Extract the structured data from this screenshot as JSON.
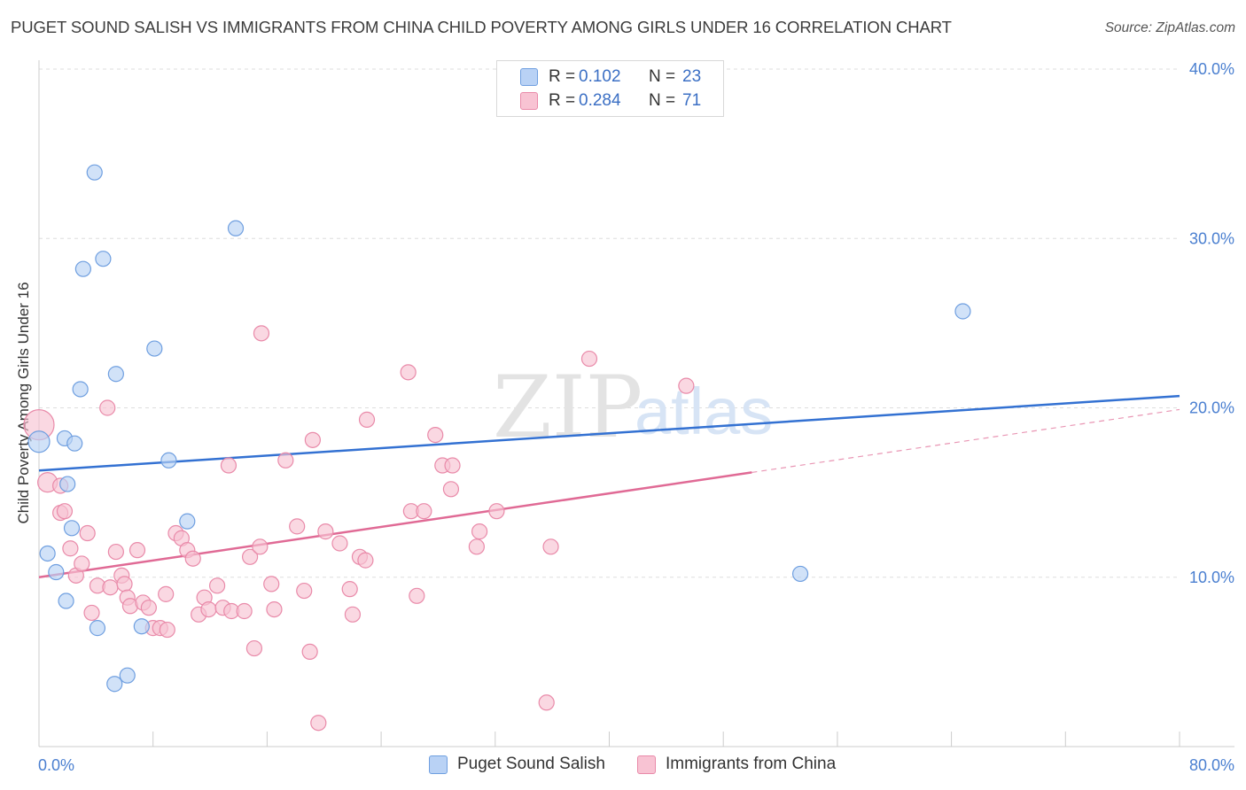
{
  "title": "PUGET SOUND SALISH VS IMMIGRANTS FROM CHINA CHILD POVERTY AMONG GIRLS UNDER 16 CORRELATION CHART",
  "source": "Source: ZipAtlas.com",
  "watermark": {
    "zip": "ZIP",
    "atlas": "atlas"
  },
  "legend": {
    "rows": [
      {
        "r_label": "R =",
        "r_value": "0.102",
        "n_label": "N =",
        "n_value": "23"
      },
      {
        "r_label": "R =",
        "r_value": "0.284",
        "n_label": "N =",
        "n_value": "71"
      }
    ]
  },
  "colors": {
    "blue_fill": "#b9d2f5",
    "blue_stroke": "#6f9fe0",
    "blue_line": "#3371d2",
    "pink_fill": "#f8c3d3",
    "pink_stroke": "#e98aa9",
    "pink_line": "#e06a95",
    "grid": "#dddddd",
    "tick_text": "#4a7fd0"
  },
  "chart_data": {
    "type": "scatter",
    "title": "PUGET SOUND SALISH VS IMMIGRANTS FROM CHINA CHILD POVERTY AMONG GIRLS UNDER 16 CORRELATION CHART",
    "xlabel": "",
    "ylabel": "Child Poverty Among Girls Under 16",
    "xlim": [
      0,
      80
    ],
    "ylim": [
      0,
      40
    ],
    "x_tick_labels": [
      {
        "value": 0,
        "label": "0.0%"
      },
      {
        "value": 80,
        "label": "80.0%"
      }
    ],
    "y_tick_labels": [
      {
        "value": 10,
        "label": "10.0%"
      },
      {
        "value": 20,
        "label": "20.0%"
      },
      {
        "value": 30,
        "label": "30.0%"
      },
      {
        "value": 40,
        "label": "40.0%"
      }
    ],
    "grid": true,
    "legend_position": "top-center",
    "series": [
      {
        "name": "Puget Sound Salish",
        "color": "blue",
        "r": 0.102,
        "n": 23,
        "trend": {
          "x0": 0,
          "y0": 16.3,
          "x1": 80,
          "y1": 20.7,
          "solid_until": 80
        },
        "points": [
          {
            "x": 0.0,
            "y": 18.0,
            "s": 12
          },
          {
            "x": 1.9,
            "y": 8.6
          },
          {
            "x": 2.3,
            "y": 12.9
          },
          {
            "x": 0.6,
            "y": 11.4
          },
          {
            "x": 1.2,
            "y": 10.3
          },
          {
            "x": 2.0,
            "y": 15.5
          },
          {
            "x": 1.8,
            "y": 18.2
          },
          {
            "x": 2.5,
            "y": 17.9
          },
          {
            "x": 2.9,
            "y": 21.1
          },
          {
            "x": 3.1,
            "y": 28.2
          },
          {
            "x": 3.9,
            "y": 33.9
          },
          {
            "x": 4.5,
            "y": 28.8
          },
          {
            "x": 5.4,
            "y": 22.0
          },
          {
            "x": 4.1,
            "y": 7.0
          },
          {
            "x": 5.3,
            "y": 3.7
          },
          {
            "x": 6.2,
            "y": 4.2
          },
          {
            "x": 7.2,
            "y": 7.1
          },
          {
            "x": 8.1,
            "y": 23.5
          },
          {
            "x": 9.1,
            "y": 16.9
          },
          {
            "x": 10.4,
            "y": 13.3
          },
          {
            "x": 13.8,
            "y": 30.6
          },
          {
            "x": 64.8,
            "y": 25.7
          },
          {
            "x": 53.4,
            "y": 10.2
          }
        ]
      },
      {
        "name": "Immigrants from China",
        "color": "pink",
        "r": 0.284,
        "n": 71,
        "trend": {
          "x0": 0,
          "y0": 10.0,
          "x1": 80,
          "y1": 19.9,
          "solid_until": 50
        },
        "points": [
          {
            "x": 0.0,
            "y": 19.0,
            "s": 17
          },
          {
            "x": 0.6,
            "y": 15.6,
            "s": 11
          },
          {
            "x": 1.5,
            "y": 13.8
          },
          {
            "x": 1.5,
            "y": 15.4
          },
          {
            "x": 1.8,
            "y": 13.9
          },
          {
            "x": 2.2,
            "y": 11.7
          },
          {
            "x": 2.6,
            "y": 10.1
          },
          {
            "x": 3.0,
            "y": 10.8
          },
          {
            "x": 3.4,
            "y": 12.6
          },
          {
            "x": 3.7,
            "y": 7.9
          },
          {
            "x": 4.1,
            "y": 9.5
          },
          {
            "x": 4.8,
            "y": 20.0
          },
          {
            "x": 5.0,
            "y": 9.4
          },
          {
            "x": 5.4,
            "y": 11.5
          },
          {
            "x": 5.8,
            "y": 10.1
          },
          {
            "x": 6.0,
            "y": 9.6
          },
          {
            "x": 6.2,
            "y": 8.8
          },
          {
            "x": 6.4,
            "y": 8.3
          },
          {
            "x": 6.9,
            "y": 11.6
          },
          {
            "x": 7.3,
            "y": 8.5
          },
          {
            "x": 7.7,
            "y": 8.2
          },
          {
            "x": 8.0,
            "y": 7.0
          },
          {
            "x": 8.5,
            "y": 7.0
          },
          {
            "x": 8.9,
            "y": 9.0
          },
          {
            "x": 9.0,
            "y": 6.9
          },
          {
            "x": 9.6,
            "y": 12.6
          },
          {
            "x": 10.0,
            "y": 12.3
          },
          {
            "x": 10.4,
            "y": 11.6
          },
          {
            "x": 10.8,
            "y": 11.1
          },
          {
            "x": 11.2,
            "y": 7.8
          },
          {
            "x": 11.6,
            "y": 8.8
          },
          {
            "x": 11.9,
            "y": 8.1
          },
          {
            "x": 12.5,
            "y": 9.5
          },
          {
            "x": 12.9,
            "y": 8.2
          },
          {
            "x": 13.3,
            "y": 16.6
          },
          {
            "x": 13.5,
            "y": 8.0
          },
          {
            "x": 14.4,
            "y": 8.0
          },
          {
            "x": 14.8,
            "y": 11.2
          },
          {
            "x": 15.1,
            "y": 5.8
          },
          {
            "x": 15.5,
            "y": 11.8
          },
          {
            "x": 15.6,
            "y": 24.4
          },
          {
            "x": 16.3,
            "y": 9.6
          },
          {
            "x": 16.5,
            "y": 8.1
          },
          {
            "x": 17.3,
            "y": 16.9
          },
          {
            "x": 18.1,
            "y": 13.0
          },
          {
            "x": 18.6,
            "y": 9.2
          },
          {
            "x": 19.0,
            "y": 5.6
          },
          {
            "x": 19.2,
            "y": 18.1
          },
          {
            "x": 19.6,
            "y": 1.4
          },
          {
            "x": 20.1,
            "y": 12.7
          },
          {
            "x": 21.1,
            "y": 12.0
          },
          {
            "x": 21.8,
            "y": 9.3
          },
          {
            "x": 22.0,
            "y": 7.8
          },
          {
            "x": 22.5,
            "y": 11.2
          },
          {
            "x": 22.9,
            "y": 11.0
          },
          {
            "x": 23.0,
            "y": 19.3
          },
          {
            "x": 25.9,
            "y": 22.1
          },
          {
            "x": 26.1,
            "y": 13.9
          },
          {
            "x": 26.5,
            "y": 8.9
          },
          {
            "x": 27.0,
            "y": 13.9
          },
          {
            "x": 27.8,
            "y": 18.4
          },
          {
            "x": 28.3,
            "y": 16.6
          },
          {
            "x": 28.9,
            "y": 15.2
          },
          {
            "x": 29.0,
            "y": 16.6
          },
          {
            "x": 30.7,
            "y": 11.8
          },
          {
            "x": 30.9,
            "y": 12.7
          },
          {
            "x": 32.1,
            "y": 13.9
          },
          {
            "x": 35.6,
            "y": 2.6
          },
          {
            "x": 35.9,
            "y": 11.8
          },
          {
            "x": 38.6,
            "y": 22.9
          },
          {
            "x": 45.4,
            "y": 21.3
          }
        ]
      }
    ]
  },
  "bottom_legend": [
    "Puget Sound Salish",
    "Immigrants from China"
  ]
}
